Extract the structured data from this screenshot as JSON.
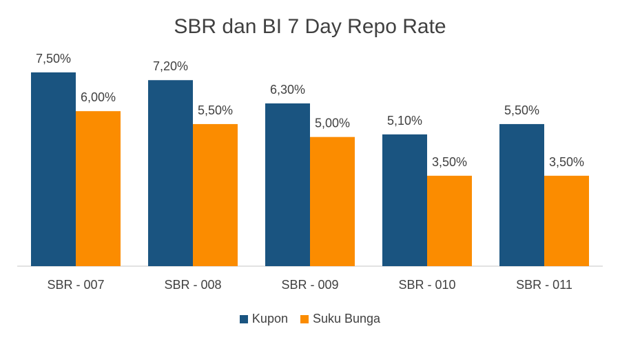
{
  "chart_data": {
    "type": "bar",
    "title": "SBR dan BI 7 Day Repo Rate",
    "categories": [
      "SBR - 007",
      "SBR - 008",
      "SBR - 009",
      "SBR - 010",
      "SBR - 011"
    ],
    "series": [
      {
        "name": "Kupon",
        "color": "#1a5480",
        "values": [
          7.5,
          7.2,
          6.3,
          5.1,
          5.5
        ],
        "labels": [
          "7,50%",
          "7,20%",
          "6,30%",
          "5,10%",
          "5,50%"
        ]
      },
      {
        "name": "Suku Bunga",
        "color": "#fb8c00",
        "values": [
          6.0,
          5.5,
          5.0,
          3.5,
          3.5
        ],
        "labels": [
          "6,00%",
          "5,50%",
          "5,00%",
          "3,50%",
          "3,50%"
        ]
      }
    ],
    "ylim": [
      0,
      7.5
    ],
    "grid": false,
    "legend_position": "bottom"
  }
}
